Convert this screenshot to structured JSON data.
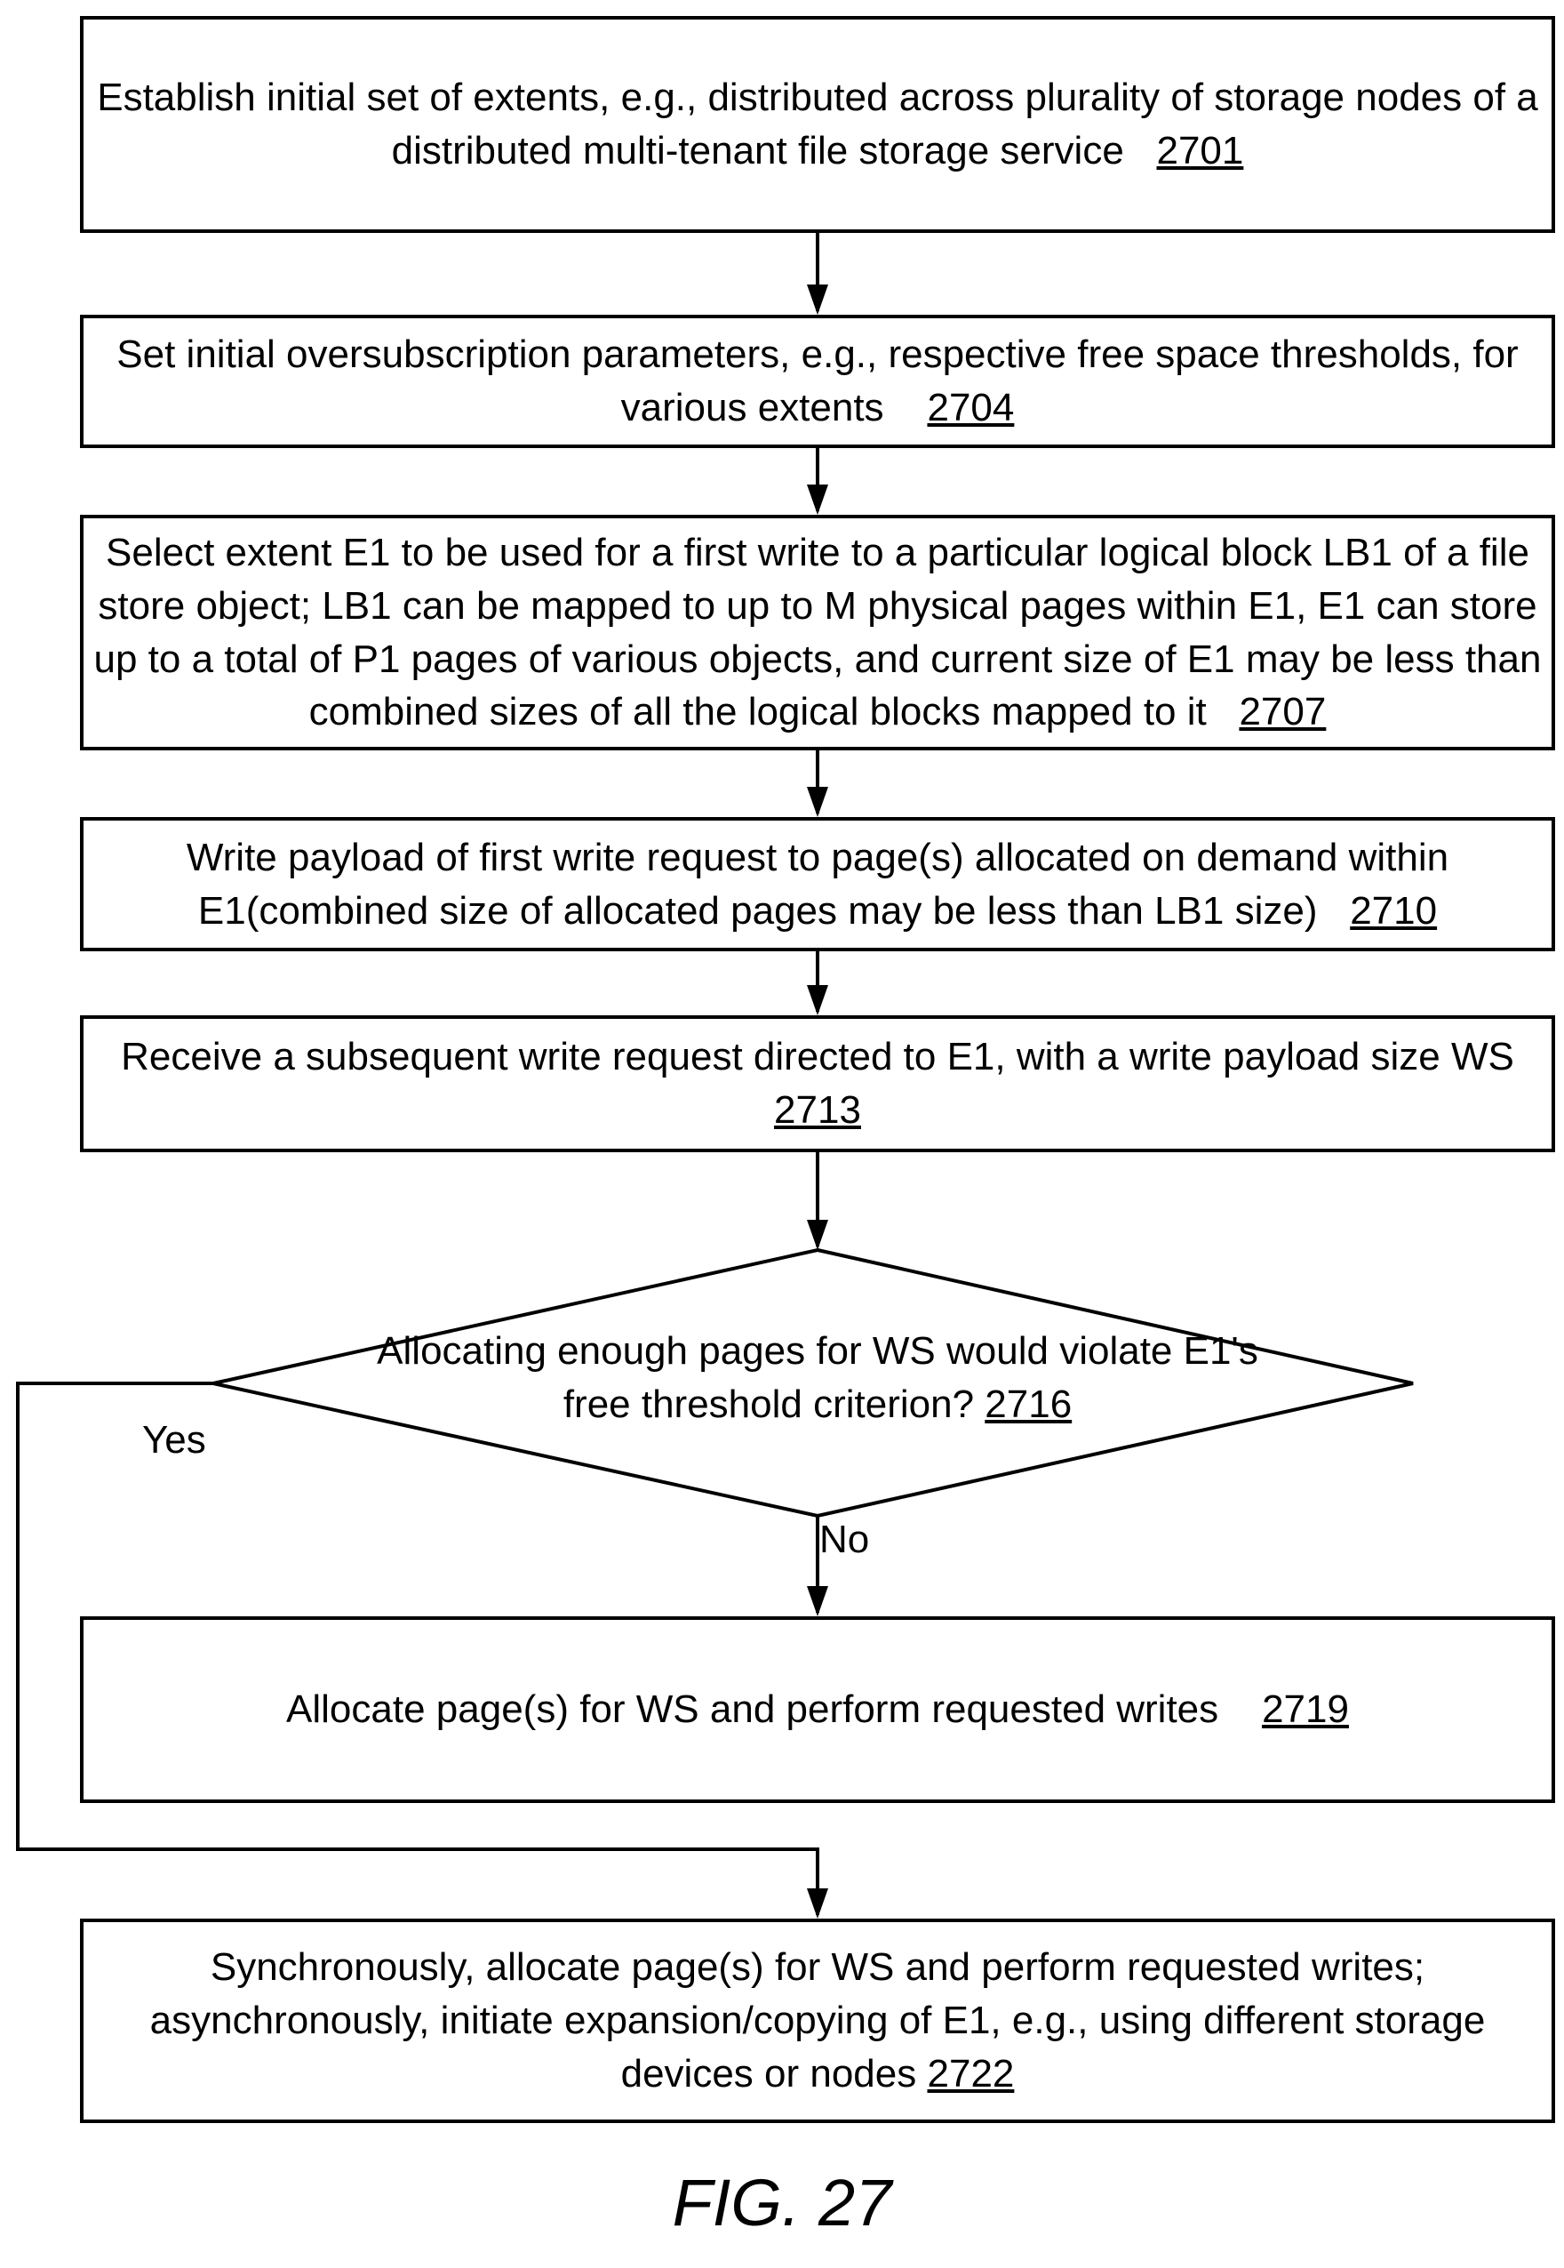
{
  "steps": {
    "s2701": {
      "text": "Establish initial set of extents, e.g., distributed across plurality of storage nodes of a distributed multi-tenant file storage service",
      "ref": "2701"
    },
    "s2704": {
      "text": "Set initial oversubscription parameters, e.g., respective free space thresholds, for various extents",
      "ref": "2704"
    },
    "s2707": {
      "text": "Select extent E1 to be used for a first write to a particular logical block LB1 of a file store object; LB1 can be mapped to up to M physical pages within E1, E1 can store up to a total of P1 pages of  various objects, and current size of E1 may be less than combined sizes of all the logical blocks mapped to it",
      "ref": "2707"
    },
    "s2710": {
      "text": "Write payload of first write request to page(s) allocated on demand within E1(combined size of allocated pages may be less than LB1 size)",
      "ref": "2710"
    },
    "s2713": {
      "text": "Receive a subsequent write request directed to E1, with a write payload size WS",
      "ref": "2713"
    },
    "s2719": {
      "text": "Allocate page(s) for WS and perform requested writes",
      "ref": "2719"
    },
    "s2722": {
      "text": "Synchronously, allocate page(s) for WS and perform requested writes; asynchronously, initiate expansion/copying of E1, e.g., using different storage devices or nodes",
      "ref": "2722"
    }
  },
  "decision": {
    "text": "Allocating enough pages for WS would violate E1's free threshold criterion?",
    "ref": "2716"
  },
  "labels": {
    "yes": "Yes",
    "no": "No"
  },
  "figure_caption": "FIG. 27"
}
